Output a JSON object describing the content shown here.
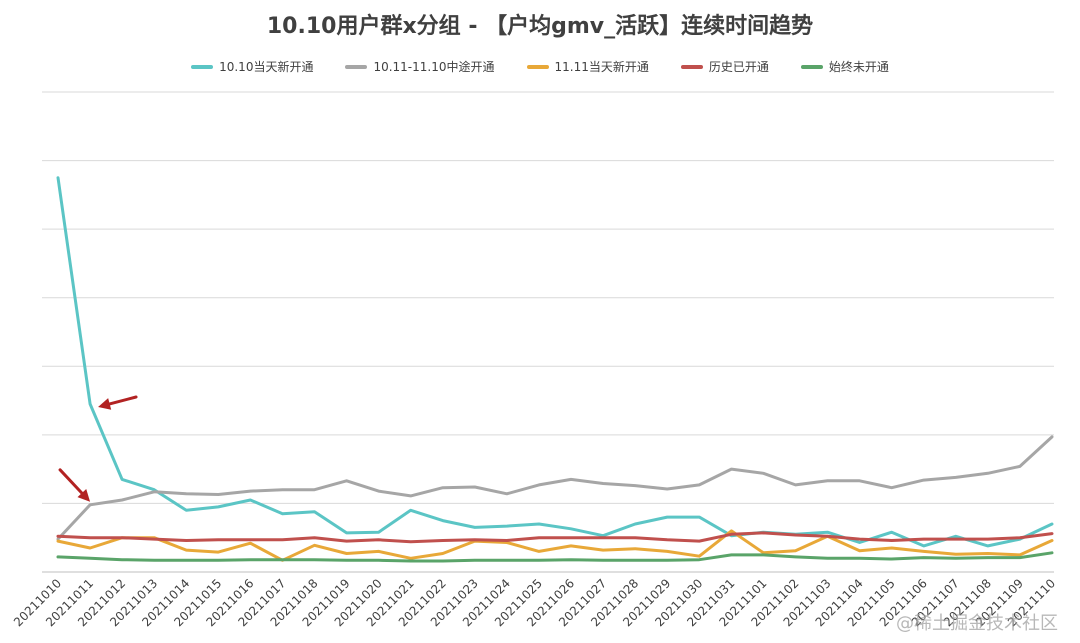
{
  "chart_data": {
    "type": "line",
    "title": "10.10用户群x分组 - 【户均gmv_活跃】连续时间趋势",
    "xlabel": "",
    "ylabel": "",
    "ylim": [
      0,
      70
    ],
    "y_tick_labels_shown": false,
    "grid": true,
    "legend_position": "top",
    "categories": [
      "20211010",
      "20211011",
      "20211012",
      "20211013",
      "20211014",
      "20211015",
      "20211016",
      "20211017",
      "20211018",
      "20211019",
      "20211020",
      "20211021",
      "20211022",
      "20211023",
      "20211024",
      "20211025",
      "20211026",
      "20211027",
      "20211028",
      "20211029",
      "20211030",
      "20211031",
      "20211101",
      "20211102",
      "20211103",
      "20211104",
      "20211105",
      "20211106",
      "20211107",
      "20211108",
      "20211109",
      "20211110"
    ],
    "series": [
      {
        "name": "10.10当天新开通",
        "color": "#5bc5c5",
        "values": [
          57.5,
          24.5,
          13.5,
          12.0,
          9.0,
          9.5,
          10.5,
          8.5,
          8.8,
          5.7,
          5.8,
          9.0,
          7.5,
          6.5,
          6.7,
          7.0,
          6.3,
          5.3,
          7.0,
          8.0,
          8.0,
          5.3,
          5.8,
          5.5,
          5.8,
          4.3,
          5.8,
          3.8,
          5.2,
          3.8,
          4.8,
          7.0
        ]
      },
      {
        "name": "10.11-11.10中途开通",
        "color": "#a6a6a6",
        "values": [
          4.8,
          9.8,
          10.5,
          11.7,
          11.4,
          11.3,
          11.8,
          12.0,
          12.0,
          13.3,
          11.8,
          11.1,
          12.3,
          12.4,
          11.4,
          12.7,
          13.5,
          12.9,
          12.6,
          12.1,
          12.7,
          15.0,
          14.4,
          12.7,
          13.3,
          13.3,
          12.3,
          13.4,
          13.8,
          14.4,
          15.4,
          19.7
        ]
      },
      {
        "name": "11.11当天新开通",
        "color": "#e8a838",
        "values": [
          4.5,
          3.5,
          5.0,
          5.0,
          3.2,
          2.9,
          4.2,
          1.7,
          3.9,
          2.7,
          3.0,
          2.0,
          2.7,
          4.5,
          4.3,
          3.0,
          3.8,
          3.2,
          3.4,
          3.0,
          2.3,
          6.0,
          2.8,
          3.1,
          5.2,
          3.1,
          3.5,
          3.0,
          2.6,
          2.7,
          2.5,
          4.6
        ]
      },
      {
        "name": "历史已开通",
        "color": "#c0504d",
        "values": [
          5.2,
          5.0,
          5.0,
          4.8,
          4.6,
          4.7,
          4.7,
          4.7,
          5.0,
          4.5,
          4.7,
          4.4,
          4.6,
          4.7,
          4.6,
          5.0,
          5.0,
          5.0,
          5.0,
          4.7,
          4.5,
          5.5,
          5.7,
          5.4,
          5.2,
          4.8,
          4.6,
          4.8,
          4.8,
          4.8,
          5.0,
          5.6
        ]
      },
      {
        "name": "始终未开通",
        "color": "#5aa469",
        "values": [
          2.2,
          2.0,
          1.8,
          1.7,
          1.7,
          1.7,
          1.8,
          1.8,
          1.8,
          1.7,
          1.7,
          1.6,
          1.6,
          1.7,
          1.7,
          1.7,
          1.8,
          1.7,
          1.7,
          1.7,
          1.8,
          2.5,
          2.5,
          2.2,
          2.0,
          2.0,
          1.9,
          2.1,
          2.0,
          2.1,
          2.1,
          2.8
        ]
      }
    ],
    "annotations": [
      {
        "type": "arrow",
        "color": "#b22222",
        "points_to_category": "20211011",
        "points_to_series": "10.10当天新开通"
      },
      {
        "type": "arrow",
        "color": "#b22222",
        "points_to_category": "20211011",
        "points_to_series": "10.11-11.10中途开通"
      }
    ]
  },
  "watermark": "@稀土掘金技术社区"
}
